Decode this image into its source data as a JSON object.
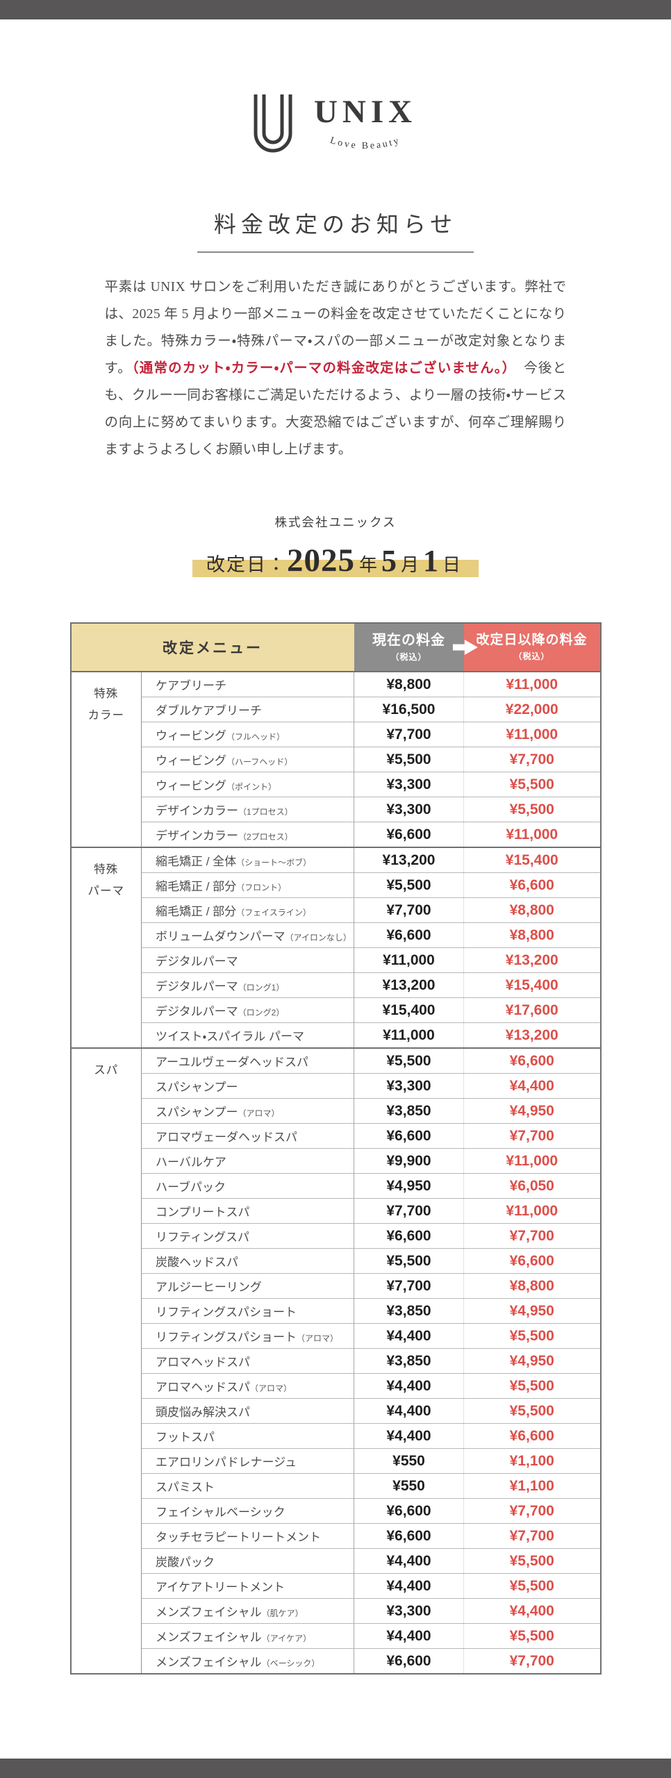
{
  "colors": {
    "frame_bar": "#595657",
    "header_menu_bg": "#eedda6",
    "header_current_bg": "#8d8d8d",
    "header_revised_bg": "#e87169",
    "revised_price_text": "#dd4f4a",
    "date_highlight": "#e7cd7e",
    "emphasis_red_text": "#c4243a"
  },
  "logo": {
    "name": "UNIX",
    "tagline": "Love Beauty"
  },
  "notice": {
    "title": "料金改定のお知らせ",
    "body_before": "平素は UNIX サロンをご利用いただき誠にありがとうございます。弊社では、2025 年 5 月より一部メニューの料金を改定させていただくことになりました。特殊カラー・特殊パーマ・スパの一部メニューが改定対象となります。",
    "body_highlight": "（通常のカット・カラー・パーマの料金改定はございません。）",
    "body_after": "　今後とも、クルー一同お客様にご満足いただけるよう、より一層の技術・サービスの向上に努めてまいります。大変恐縮ではございますが、何卒ご理解賜りますようよろしくお願い申し上げます。",
    "company": "株式会社ユニックス"
  },
  "revision_date": {
    "label": "改定日：",
    "year": "2025",
    "year_unit": "年",
    "month": "5",
    "month_unit": "月",
    "day": "1",
    "day_unit": "日"
  },
  "table": {
    "headers": {
      "menu": "改定メニュー",
      "current": "現在の料金",
      "current_note": "（税込）",
      "revised": "改定日以降の料金",
      "revised_note": "（税込）"
    },
    "sections": [
      {
        "category_lines": [
          "特殊",
          "カラー"
        ],
        "rows": [
          {
            "name": "ケアブリーチ",
            "note": "",
            "current": "¥8,800",
            "revised": "¥11,000"
          },
          {
            "name": "ダブルケアブリーチ",
            "note": "",
            "current": "¥16,500",
            "revised": "¥22,000"
          },
          {
            "name": "ウィービング",
            "note": "（フルヘッド）",
            "current": "¥7,700",
            "revised": "¥11,000"
          },
          {
            "name": "ウィービング",
            "note": "（ハーフヘッド）",
            "current": "¥5,500",
            "revised": "¥7,700"
          },
          {
            "name": "ウィービング",
            "note": "（ポイント）",
            "current": "¥3,300",
            "revised": "¥5,500"
          },
          {
            "name": "デザインカラー",
            "note": "（1プロセス）",
            "current": "¥3,300",
            "revised": "¥5,500"
          },
          {
            "name": "デザインカラー",
            "note": "（2プロセス）",
            "current": "¥6,600",
            "revised": "¥11,000"
          }
        ]
      },
      {
        "category_lines": [
          "特殊",
          "パーマ"
        ],
        "rows": [
          {
            "name": "縮毛矯正 / 全体",
            "note": "（ショート〜ボブ）",
            "current": "¥13,200",
            "revised": "¥15,400"
          },
          {
            "name": "縮毛矯正 / 部分",
            "note": "（フロント）",
            "current": "¥5,500",
            "revised": "¥6,600"
          },
          {
            "name": "縮毛矯正 / 部分",
            "note": "（フェイスライン）",
            "current": "¥7,700",
            "revised": "¥8,800"
          },
          {
            "name": "ボリュームダウンパーマ",
            "note": "（アイロンなし）",
            "current": "¥6,600",
            "revised": "¥8,800"
          },
          {
            "name": "デジタルパーマ",
            "note": "",
            "current": "¥11,000",
            "revised": "¥13,200"
          },
          {
            "name": "デジタルパーマ",
            "note": "（ロング1）",
            "current": "¥13,200",
            "revised": "¥15,400"
          },
          {
            "name": "デジタルパーマ",
            "note": "（ロング2）",
            "current": "¥15,400",
            "revised": "¥17,600"
          },
          {
            "name": "ツイスト・スパイラル パーマ",
            "note": "",
            "current": "¥11,000",
            "revised": "¥13,200"
          }
        ]
      },
      {
        "category_lines": [
          "スパ"
        ],
        "rows": [
          {
            "name": "アーユルヴェーダヘッドスパ",
            "note": "",
            "current": "¥5,500",
            "revised": "¥6,600"
          },
          {
            "name": "スパシャンプー",
            "note": "",
            "current": "¥3,300",
            "revised": "¥4,400"
          },
          {
            "name": "スパシャンプー",
            "note": "（アロマ）",
            "current": "¥3,850",
            "revised": "¥4,950"
          },
          {
            "name": "アロマヴェーダヘッドスパ",
            "note": "",
            "current": "¥6,600",
            "revised": "¥7,700"
          },
          {
            "name": "ハーバルケア",
            "note": "",
            "current": "¥9,900",
            "revised": "¥11,000"
          },
          {
            "name": "ハーブパック",
            "note": "",
            "current": "¥4,950",
            "revised": "¥6,050"
          },
          {
            "name": "コンプリートスパ",
            "note": "",
            "current": "¥7,700",
            "revised": "¥11,000"
          },
          {
            "name": "リフティングスパ",
            "note": "",
            "current": "¥6,600",
            "revised": "¥7,700"
          },
          {
            "name": "炭酸ヘッドスパ",
            "note": "",
            "current": "¥5,500",
            "revised": "¥6,600"
          },
          {
            "name": "アルジーヒーリング",
            "note": "",
            "current": "¥7,700",
            "revised": "¥8,800"
          },
          {
            "name": "リフティングスパショート",
            "note": "",
            "current": "¥3,850",
            "revised": "¥4,950"
          },
          {
            "name": "リフティングスパショート",
            "note": "（アロマ）",
            "current": "¥4,400",
            "revised": "¥5,500"
          },
          {
            "name": "アロマヘッドスパ",
            "note": "",
            "current": "¥3,850",
            "revised": "¥4,950"
          },
          {
            "name": "アロマヘッドスパ",
            "note": "（アロマ）",
            "current": "¥4,400",
            "revised": "¥5,500"
          },
          {
            "name": "頭皮悩み解決スパ",
            "note": "",
            "current": "¥4,400",
            "revised": "¥5,500"
          },
          {
            "name": "フットスパ",
            "note": "",
            "current": "¥4,400",
            "revised": "¥6,600"
          },
          {
            "name": "エアロリンパドレナージュ",
            "note": "",
            "current": "¥550",
            "revised": "¥1,100"
          },
          {
            "name": "スパミスト",
            "note": "",
            "current": "¥550",
            "revised": "¥1,100"
          },
          {
            "name": "フェイシャルベーシック",
            "note": "",
            "current": "¥6,600",
            "revised": "¥7,700"
          },
          {
            "name": "タッチセラピートリートメント",
            "note": "",
            "current": "¥6,600",
            "revised": "¥7,700"
          },
          {
            "name": "炭酸パック",
            "note": "",
            "current": "¥4,400",
            "revised": "¥5,500"
          },
          {
            "name": "アイケアトリートメント",
            "note": "",
            "current": "¥4,400",
            "revised": "¥5,500"
          },
          {
            "name": "メンズフェイシャル",
            "note": "（肌ケア）",
            "current": "¥3,300",
            "revised": "¥4,400"
          },
          {
            "name": "メンズフェイシャル",
            "note": "（アイケア）",
            "current": "¥4,400",
            "revised": "¥5,500"
          },
          {
            "name": "メンズフェイシャル",
            "note": "（ベーシック）",
            "current": "¥6,600",
            "revised": "¥7,700"
          }
        ]
      }
    ]
  }
}
